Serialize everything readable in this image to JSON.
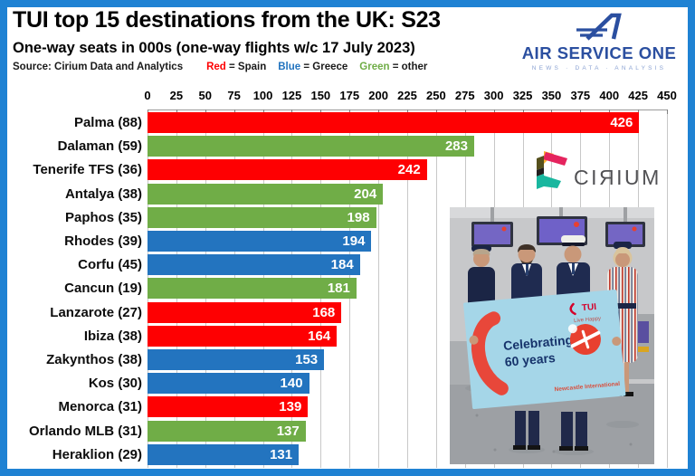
{
  "header": {
    "title": "TUI top 15 destinations from the UK: S23",
    "subtitle": "One-way seats in 000s (one-way flights w/c 17 July 2023)",
    "source_label": "Source: Cirium Data and Analytics",
    "legend_items": [
      {
        "word": "Red",
        "rest": " = Spain",
        "color": "#FE0002"
      },
      {
        "word": "Blue",
        "rest": " = Greece",
        "color": "#2374BF"
      },
      {
        "word": "Green",
        "rest": " = other",
        "color": "#70AD47"
      }
    ]
  },
  "logos": {
    "air_service_one_name": "AIR SERVICE ONE",
    "air_service_one_tagline": "NEWS · DATA · ANALYSIS",
    "cirium_wordmark": "CIЯIUM"
  },
  "photo": {
    "sign_line1": "Celebrating",
    "sign_line2": "60 years",
    "sign_brand": "TUI",
    "sign_sub": "Live Happy",
    "sign_small": "Newcastle International"
  },
  "chart_data": {
    "type": "bar",
    "orientation": "horizontal",
    "title": "TUI top 15 destinations from the UK: S23",
    "subtitle": "One-way seats in 000s (one-way flights w/c 17 July 2023)",
    "source": "Source: Cirium Data and Analytics",
    "xlim": [
      0,
      450
    ],
    "xticks": [
      0,
      25,
      50,
      75,
      100,
      125,
      150,
      175,
      200,
      225,
      250,
      275,
      300,
      325,
      350,
      375,
      400,
      425,
      450
    ],
    "grid": true,
    "value_labels": "inside-end",
    "legend_position": "top-left",
    "categories": [
      "Palma (88)",
      "Dalaman (59)",
      "Tenerife TFS (36)",
      "Antalya (38)",
      "Paphos (35)",
      "Rhodes (39)",
      "Corfu (45)",
      "Cancun (19)",
      "Lanzarote (27)",
      "Ibiza (38)",
      "Zakynthos (38)",
      "Kos (30)",
      "Menorca (31)",
      "Orlando MLB (31)",
      "Heraklion (29)"
    ],
    "values": [
      426,
      283,
      242,
      204,
      198,
      194,
      184,
      181,
      168,
      164,
      153,
      140,
      139,
      137,
      131
    ],
    "groups": [
      "spain",
      "other",
      "spain",
      "other",
      "other",
      "greece",
      "greece",
      "other",
      "spain",
      "spain",
      "greece",
      "greece",
      "spain",
      "other",
      "greece"
    ],
    "color_map": {
      "spain": "#FE0002",
      "greece": "#2374BF",
      "other": "#70AD47"
    },
    "group_legend": {
      "spain": "Red = Spain",
      "greece": "Blue = Greece",
      "other": "Green = other"
    }
  }
}
